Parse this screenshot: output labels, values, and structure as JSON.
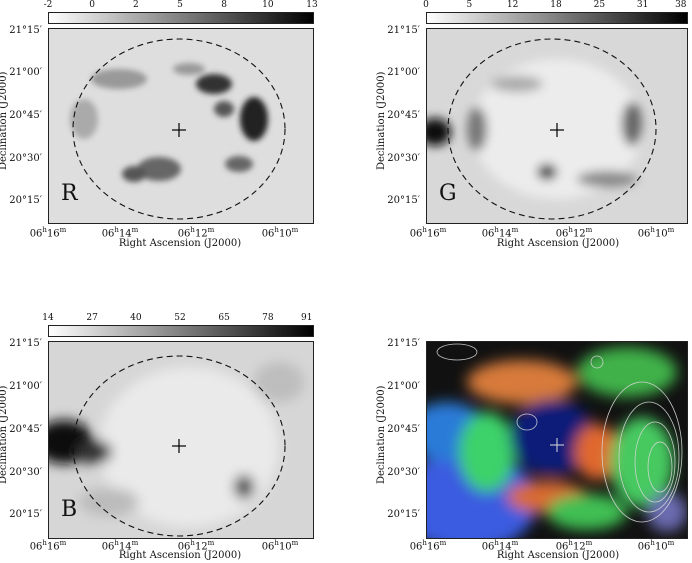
{
  "panels": [
    {
      "id": "R",
      "label": "R",
      "colorbar": [
        "-2",
        "0",
        "2",
        "5",
        "8",
        "10",
        "13"
      ]
    },
    {
      "id": "G",
      "label": "G",
      "colorbar": [
        "0",
        "5",
        "12",
        "18",
        "25",
        "31",
        "38"
      ]
    },
    {
      "id": "B",
      "label": "B",
      "colorbar": [
        "14",
        "27",
        "40",
        "52",
        "65",
        "78",
        "91"
      ]
    },
    {
      "id": "RGB",
      "label": "",
      "colorbar": []
    }
  ],
  "axes": {
    "y_ticks": [
      "21°15′",
      "21°00′",
      "20°45′",
      "20°30′",
      "20°15′"
    ],
    "x_ticks": [
      "06h16m",
      "06h14m",
      "06h12m",
      "06h10m"
    ],
    "xlabel": "Right Ascension (J2000)",
    "ylabel": "Declination (J2000)"
  }
}
